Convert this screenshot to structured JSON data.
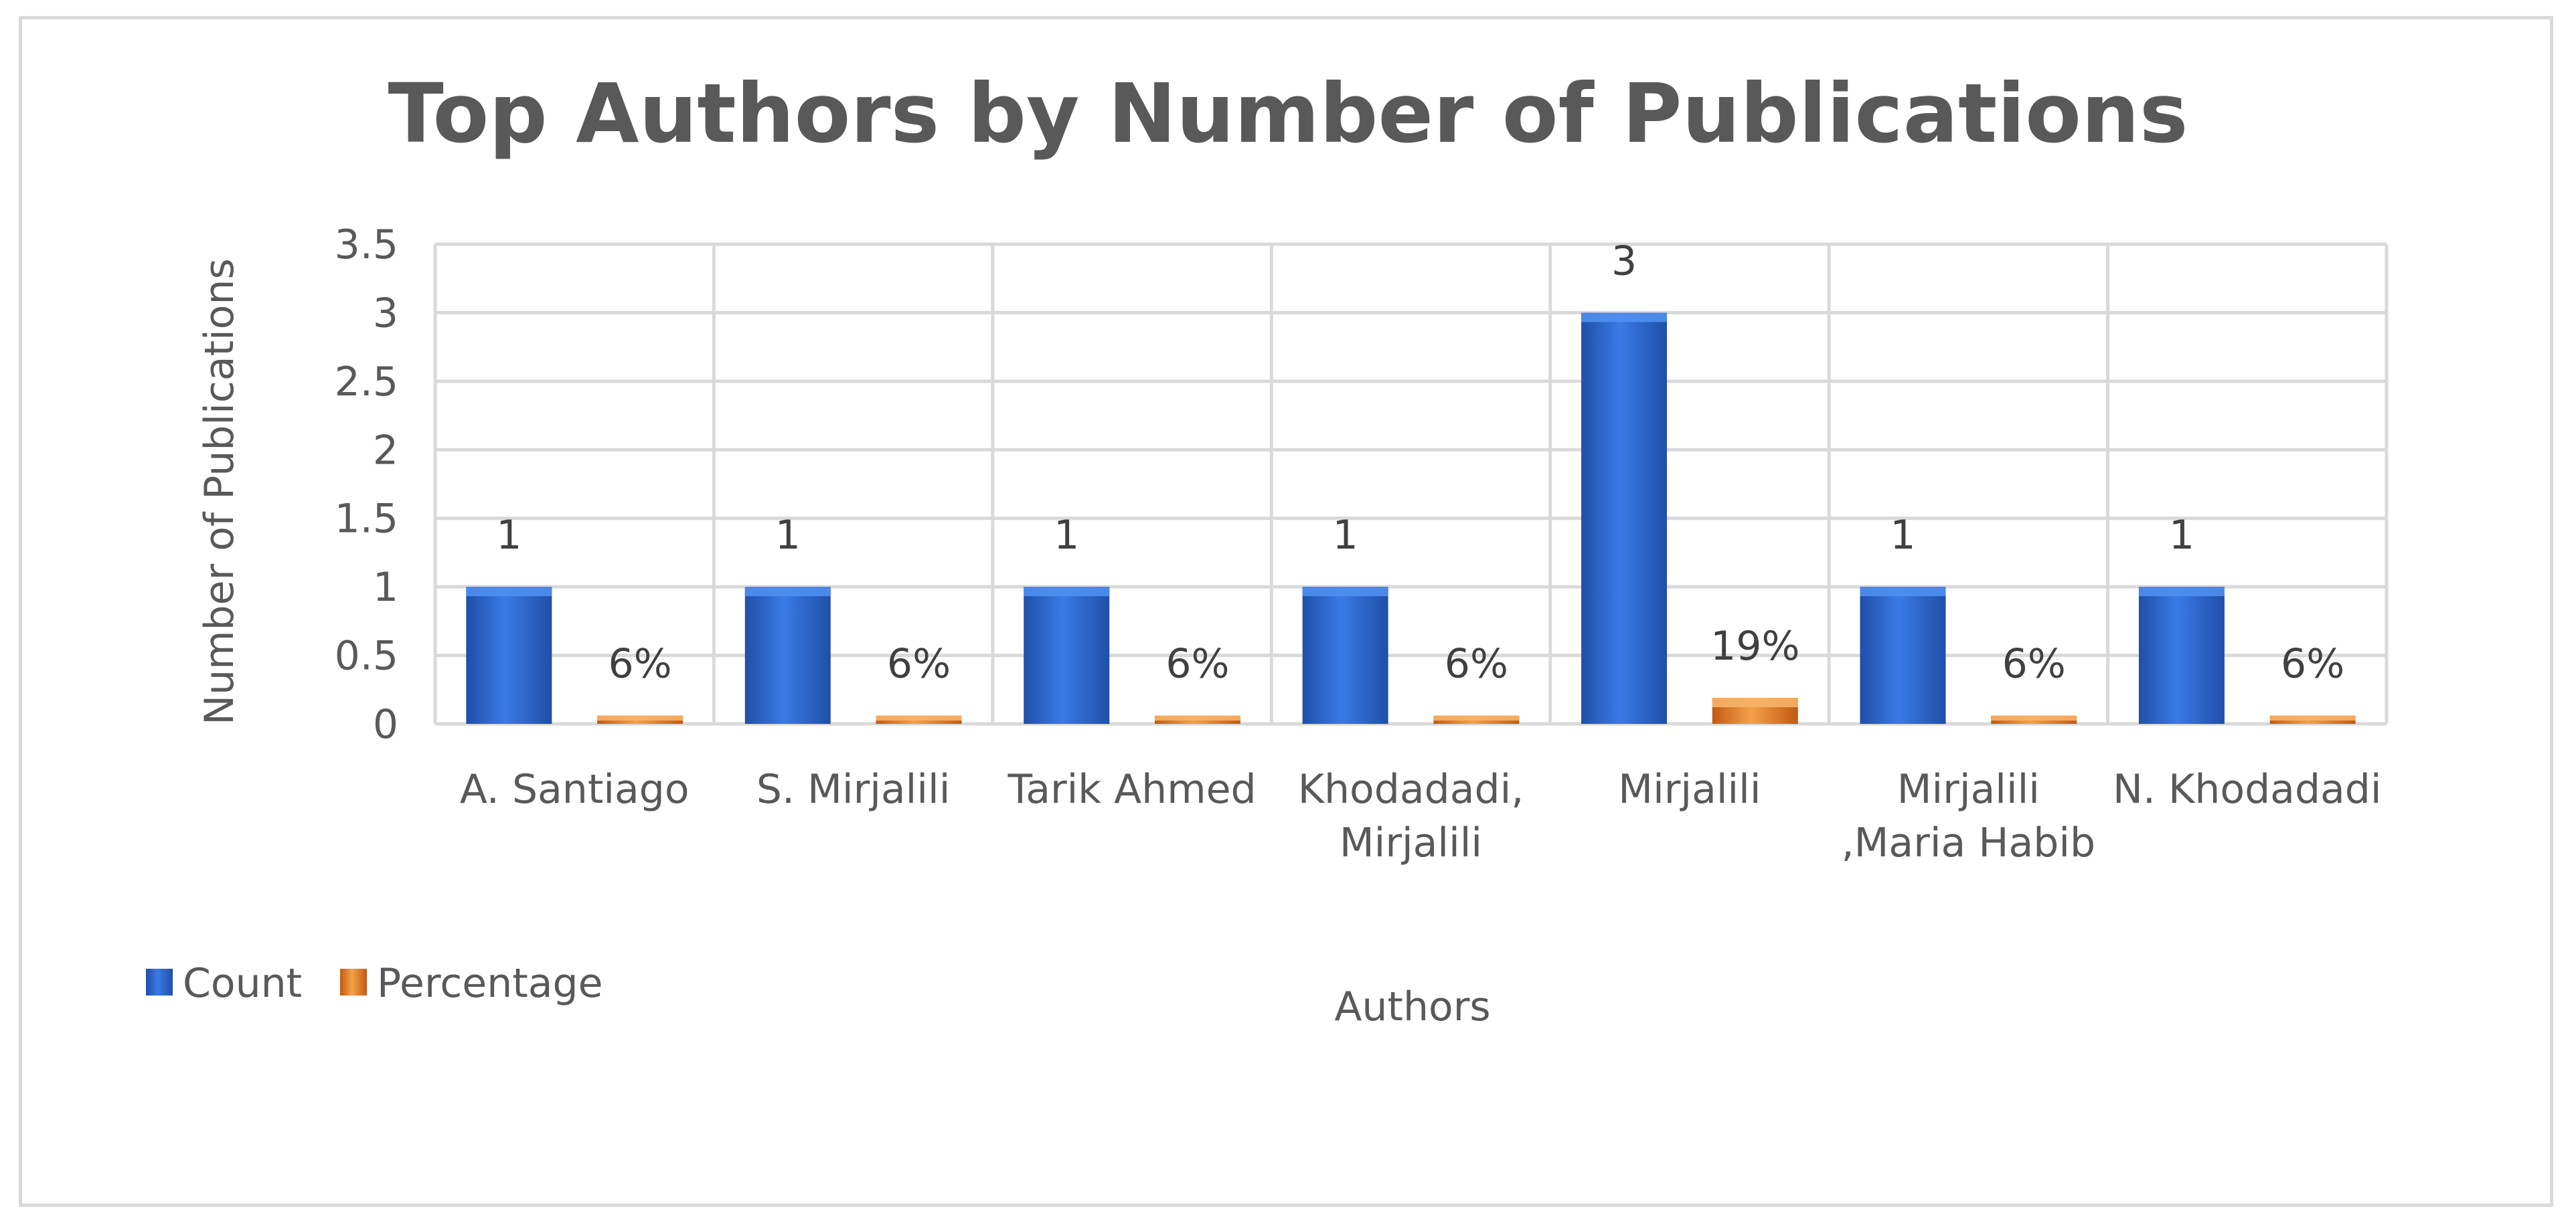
{
  "chart_data": {
    "type": "bar",
    "title": "Top Authors by Number of Publications",
    "xlabel": "Authors",
    "ylabel": "Number of Publications",
    "ylim": [
      0,
      3.5
    ],
    "yticks": [
      "0",
      "0.5",
      "1",
      "1.5",
      "2",
      "2.5",
      "3",
      "3.5"
    ],
    "grid": true,
    "legend_position": "bottom-left",
    "categories": [
      [
        "A. Santiago"
      ],
      [
        "S. Mirjalili"
      ],
      [
        "Tarik Ahmed"
      ],
      [
        "Khodadadi,",
        "Mirjalili"
      ],
      [
        "Mirjalili"
      ],
      [
        "Mirjalili",
        ",Maria Habib"
      ],
      [
        "N. Khodadadi"
      ]
    ],
    "series": [
      {
        "name": "Count",
        "color": "#2e6bd6",
        "values": [
          1,
          1,
          1,
          1,
          3,
          1,
          1
        ],
        "labels": [
          "1",
          "1",
          "1",
          "1",
          "3",
          "1",
          "1"
        ]
      },
      {
        "name": "Percentage",
        "color": "#ed7d31",
        "values": [
          0.06,
          0.06,
          0.06,
          0.06,
          0.19,
          0.06,
          0.06
        ],
        "labels": [
          "6%",
          "6%",
          "6%",
          "6%",
          "19%",
          "6%",
          "6%"
        ]
      }
    ]
  }
}
